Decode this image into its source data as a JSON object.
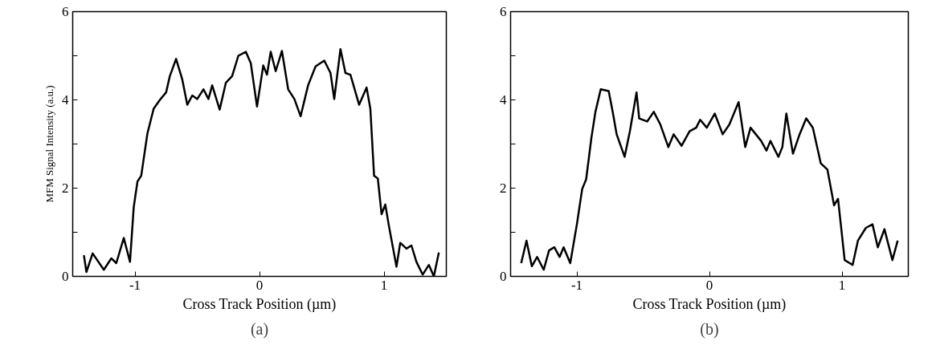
{
  "chart_data": [
    {
      "type": "line",
      "xlabel": "Cross Track Position (µm)",
      "ylabel": "MFM Signal Intensity (a.u.)",
      "annotations": [
        "(a)"
      ],
      "grid": false,
      "marker": "none",
      "line_style": "solid",
      "xlim": [
        -1.5,
        1.5
      ],
      "ylim": [
        0,
        6
      ],
      "xticks": [
        -1,
        0,
        1
      ],
      "yticks": [
        0,
        {
          "value": 1,
          "label": null
        },
        2,
        {
          "value": 3,
          "label": null
        },
        4,
        {
          "value": 5,
          "label": null
        },
        6
      ],
      "series": [
        {
          "color": "#000000",
          "x": [
            -1.41,
            -1.39,
            -1.34,
            -1.25,
            -1.19,
            -1.15,
            -1.09,
            -1.04,
            -1.01,
            -0.98,
            -0.95,
            -0.9,
            -0.85,
            -0.8,
            -0.75,
            -0.72,
            -0.67,
            -0.62,
            -0.58,
            -0.54,
            -0.5,
            -0.45,
            -0.41,
            -0.38,
            -0.32,
            -0.27,
            -0.22,
            -0.17,
            -0.11,
            -0.07,
            -0.02,
            0.03,
            0.06,
            0.09,
            0.13,
            0.18,
            0.23,
            0.28,
            0.33,
            0.39,
            0.45,
            0.52,
            0.57,
            0.6,
            0.65,
            0.69,
            0.73,
            0.8,
            0.86,
            0.89,
            0.92,
            0.95,
            0.98,
            1.01,
            1.04,
            1.1,
            1.13,
            1.18,
            1.22,
            1.26,
            1.31,
            1.36,
            1.4,
            1.44
          ],
          "values": [
            0.48,
            0.1,
            0.52,
            0.15,
            0.41,
            0.3,
            0.87,
            0.33,
            1.57,
            2.15,
            2.28,
            3.24,
            3.8,
            4.0,
            4.17,
            4.54,
            4.93,
            4.46,
            3.89,
            4.1,
            4.02,
            4.24,
            4.02,
            4.33,
            3.78,
            4.39,
            4.54,
            5.0,
            5.09,
            4.83,
            3.85,
            4.78,
            4.57,
            5.09,
            4.65,
            5.11,
            4.24,
            4.02,
            3.63,
            4.33,
            4.76,
            4.89,
            4.61,
            4.02,
            5.15,
            4.61,
            4.57,
            3.89,
            4.28,
            3.8,
            2.28,
            2.22,
            1.41,
            1.63,
            1.13,
            0.22,
            0.76,
            0.63,
            0.7,
            0.33,
            0.04,
            0.26,
            0.0,
            0.54
          ]
        }
      ]
    },
    {
      "type": "line",
      "xlabel": "Cross Track Position (µm)",
      "annotations": [
        "(b)"
      ],
      "grid": false,
      "marker": "none",
      "line_style": "solid",
      "xlim": [
        -1.5,
        1.5
      ],
      "ylim": [
        0,
        6
      ],
      "xticks": [
        -1,
        0,
        1
      ],
      "yticks": [
        0,
        {
          "value": 1,
          "label": null
        },
        2,
        {
          "value": 3,
          "label": null
        },
        4,
        {
          "value": 5,
          "label": null
        },
        6
      ],
      "series": [
        {
          "color": "#000000",
          "x": [
            -1.42,
            -1.38,
            -1.34,
            -1.3,
            -1.25,
            -1.21,
            -1.17,
            -1.13,
            -1.1,
            -1.05,
            -1.0,
            -0.96,
            -0.93,
            -0.89,
            -0.86,
            -0.82,
            -0.76,
            -0.73,
            -0.7,
            -0.64,
            -0.6,
            -0.55,
            -0.53,
            -0.47,
            -0.42,
            -0.37,
            -0.31,
            -0.27,
            -0.21,
            -0.15,
            -0.1,
            -0.07,
            -0.02,
            0.04,
            0.1,
            0.15,
            0.22,
            0.27,
            0.31,
            0.39,
            0.43,
            0.46,
            0.52,
            0.55,
            0.58,
            0.63,
            0.68,
            0.73,
            0.78,
            0.84,
            0.89,
            0.94,
            0.97,
            1.02,
            1.08,
            1.12,
            1.18,
            1.23,
            1.27,
            1.32,
            1.38,
            1.42
          ],
          "values": [
            0.3,
            0.81,
            0.23,
            0.44,
            0.15,
            0.59,
            0.66,
            0.44,
            0.66,
            0.3,
            1.18,
            1.98,
            2.2,
            3.15,
            3.73,
            4.24,
            4.2,
            3.73,
            3.22,
            2.71,
            3.29,
            4.17,
            3.58,
            3.51,
            3.73,
            3.44,
            2.93,
            3.22,
            2.96,
            3.29,
            3.37,
            3.55,
            3.37,
            3.69,
            3.22,
            3.44,
            3.95,
            2.93,
            3.37,
            3.07,
            2.85,
            3.07,
            2.71,
            2.93,
            3.69,
            2.78,
            3.22,
            3.58,
            3.37,
            2.56,
            2.42,
            1.61,
            1.76,
            0.37,
            0.26,
            0.81,
            1.1,
            1.18,
            0.66,
            1.07,
            0.37,
            0.81
          ]
        }
      ]
    }
  ]
}
